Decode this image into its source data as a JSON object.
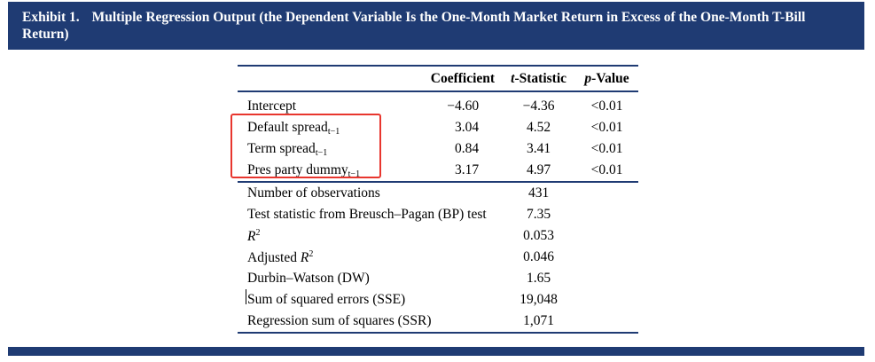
{
  "exhibit": {
    "number": "Exhibit 1.",
    "title": "Multiple Regression Output (the Dependent Variable Is the One-Month Market Return in Excess of the One-Month T-Bill Return)"
  },
  "table": {
    "headers": {
      "coefficient": "Coefficient",
      "t_stat_italic": "t",
      "t_stat_rest": "-Statistic",
      "p_value_italic": "p",
      "p_value_rest": "-Value"
    },
    "rows": [
      {
        "label": "Intercept",
        "sub": "",
        "coef": "−4.60",
        "t": "−4.36",
        "p": "<0.01"
      },
      {
        "label": "Default spread",
        "sub": "t−1",
        "coef": "3.04",
        "t": "4.52",
        "p": "<0.01"
      },
      {
        "label": "Term spread",
        "sub": "t−1",
        "coef": "0.84",
        "t": "3.41",
        "p": "<0.01"
      },
      {
        "label": "Pres party dummy",
        "sub": "t−1",
        "coef": "3.17",
        "t": "4.97",
        "p": "<0.01"
      }
    ],
    "stats": [
      {
        "label": "Number of observations",
        "value": "431"
      },
      {
        "label": "Test statistic from Breusch–Pagan (BP) test",
        "value": "7.35"
      },
      {
        "label": "R",
        "sup": "2",
        "value": "0.053"
      },
      {
        "label_prefix": "Adjusted ",
        "label": "R",
        "sup": "2",
        "value": "0.046"
      },
      {
        "label": "Durbin–Watson (DW)",
        "value": "1.65"
      },
      {
        "label": "Sum of squared errors (SSE)",
        "value": "19,048"
      },
      {
        "label": "Regression sum of squares (SSR)",
        "value": "1,071"
      }
    ]
  },
  "colors": {
    "header_bg": "#1f3b73",
    "highlight": "#e8362e"
  }
}
